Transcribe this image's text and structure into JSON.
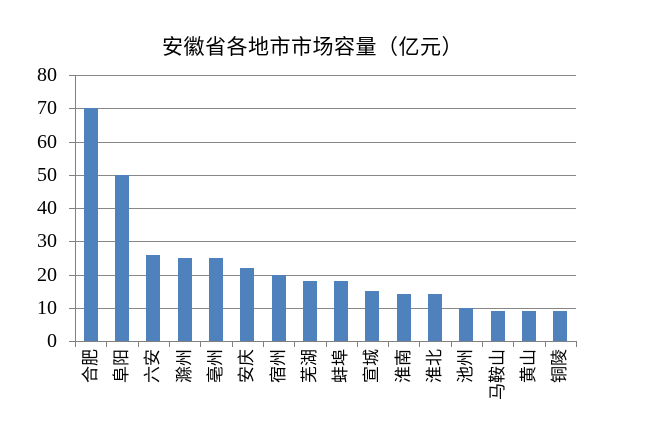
{
  "chart_data": {
    "type": "bar",
    "title": "安徽省各地市市场容量（亿元）",
    "categories": [
      "合肥",
      "阜阳",
      "六安",
      "滁州",
      "亳州",
      "安庆",
      "宿州",
      "芜湖",
      "蚌埠",
      "宣城",
      "淮南",
      "淮北",
      "池州",
      "马鞍山",
      "黄山",
      "铜陵"
    ],
    "values": [
      70,
      50,
      26,
      25,
      25,
      22,
      20,
      18,
      18,
      15,
      14,
      14,
      10,
      9,
      9,
      9
    ],
    "xlabel": "",
    "ylabel": "",
    "ylim": [
      0,
      80
    ],
    "yticks": [
      0,
      10,
      20,
      30,
      40,
      50,
      60,
      70,
      80
    ],
    "grid": true,
    "legend": false
  },
  "colors": {
    "bar": "#4F81BD",
    "gridline": "#878787",
    "axis": "#808080",
    "text": "#000000",
    "background": "#FFFFFF"
  }
}
